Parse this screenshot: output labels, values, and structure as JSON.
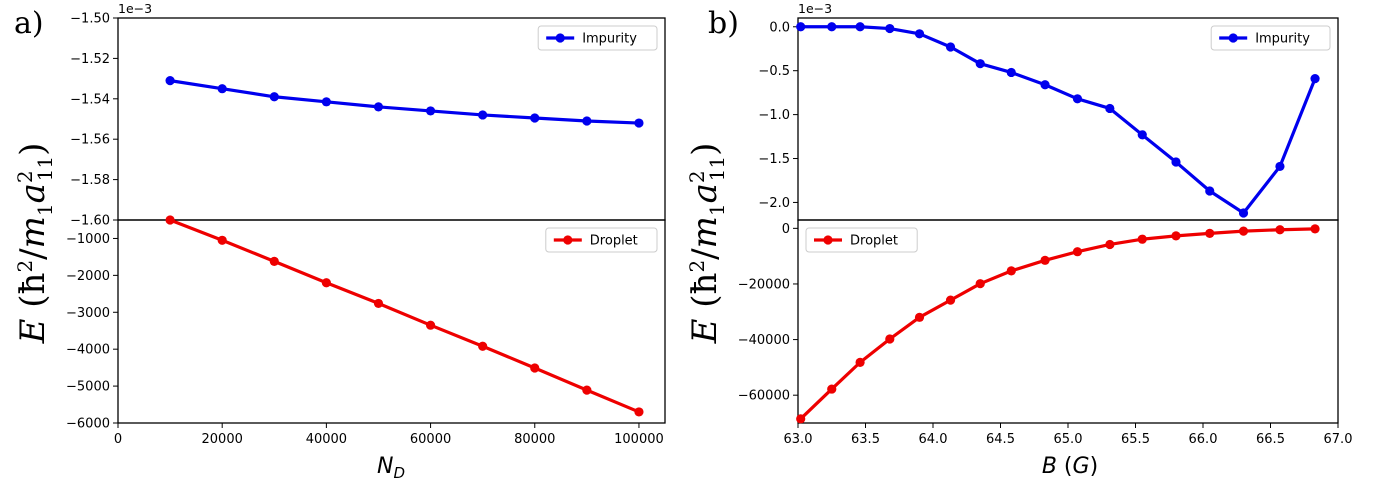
{
  "colors": {
    "impurity": "#0000ee",
    "droplet": "#ee0000",
    "axis": "#000000"
  },
  "chart_data": [
    {
      "id": "a",
      "panel_label": "a)",
      "type": "line",
      "xlabel": "N_D",
      "ylabel": "E (ħ²/m₁a₁₁²)",
      "x_ticks": [
        "0",
        "20000",
        "40000",
        "60000",
        "80000",
        "100000"
      ],
      "x_tick_values": [
        0,
        20000,
        40000,
        60000,
        80000,
        100000
      ],
      "xlim": [
        0,
        105000
      ],
      "top": {
        "offset_label": "1e−3",
        "ylim": [
          -1.6,
          -1.5
        ],
        "y_tick_values": [
          -1.6,
          -1.58,
          -1.56,
          -1.54,
          -1.52,
          -1.5
        ],
        "y_ticks": [
          "−1.60",
          "−1.58",
          "−1.56",
          "−1.54",
          "−1.52",
          "−1.50"
        ],
        "legend_position": "top-right",
        "series": [
          {
            "name": "Impurity",
            "color_key": "impurity",
            "x": [
              10000,
              20000,
              30000,
              40000,
              50000,
              60000,
              70000,
              80000,
              90000,
              100000
            ],
            "y": [
              -1.531,
              -1.535,
              -1.539,
              -1.5415,
              -1.544,
              -1.546,
              -1.548,
              -1.5495,
              -1.551,
              -1.552
            ]
          }
        ]
      },
      "bottom": {
        "ylim": [
          -6000,
          -500
        ],
        "y_tick_values": [
          -6000,
          -5000,
          -4000,
          -3000,
          -2000,
          -1000
        ],
        "y_ticks": [
          "−6000",
          "−5000",
          "−4000",
          "−3000",
          "−2000",
          "−1000"
        ],
        "legend_position": "top-right",
        "series": [
          {
            "name": "Droplet",
            "color_key": "droplet",
            "x": [
              10000,
              20000,
              30000,
              40000,
              50000,
              60000,
              70000,
              80000,
              90000,
              100000
            ],
            "y": [
              -500,
              -1050,
              -1620,
              -2200,
              -2760,
              -3350,
              -3920,
              -4510,
              -5110,
              -5700
            ]
          }
        ]
      }
    },
    {
      "id": "b",
      "panel_label": "b)",
      "type": "line",
      "xlabel": "B (G)",
      "ylabel": "E (ħ²/m₁a₁₁²)",
      "x_ticks": [
        "63.0",
        "63.5",
        "64.0",
        "64.5",
        "65.0",
        "65.5",
        "66.0",
        "66.5",
        "67.0"
      ],
      "x_tick_values": [
        63.0,
        63.5,
        64.0,
        64.5,
        65.0,
        65.5,
        66.0,
        66.5,
        67.0
      ],
      "xlim": [
        63.0,
        67.0
      ],
      "top": {
        "offset_label": "1e−3",
        "ylim": [
          -2.2,
          0.1
        ],
        "y_tick_values": [
          -2.0,
          -1.5,
          -1.0,
          -0.5,
          0.0
        ],
        "y_ticks": [
          "−2.0",
          "−1.5",
          "−1.0",
          "−0.5",
          "0.0"
        ],
        "legend_position": "top-right",
        "series": [
          {
            "name": "Impurity",
            "color_key": "impurity",
            "x": [
              63.02,
              63.25,
              63.46,
              63.68,
              63.9,
              64.13,
              64.35,
              64.58,
              64.83,
              65.07,
              65.31,
              65.55,
              65.8,
              66.05,
              66.3,
              66.57,
              66.83
            ],
            "y": [
              0.0,
              0.0,
              0.0,
              -0.02,
              -0.08,
              -0.23,
              -0.42,
              -0.52,
              -0.66,
              -0.82,
              -0.93,
              -1.23,
              -1.54,
              -1.87,
              -2.12,
              -1.59,
              -0.59
            ]
          }
        ]
      },
      "bottom": {
        "ylim": [
          -70000,
          3000
        ],
        "y_tick_values": [
          -60000,
          -40000,
          -20000,
          0
        ],
        "y_ticks": [
          "−60000",
          "−40000",
          "−20000",
          "0"
        ],
        "legend_position": "top-left",
        "series": [
          {
            "name": "Droplet",
            "color_key": "droplet",
            "x": [
              63.02,
              63.25,
              63.46,
              63.68,
              63.9,
              64.13,
              64.35,
              64.58,
              64.83,
              65.07,
              65.31,
              65.55,
              65.8,
              66.05,
              66.3,
              66.57,
              66.83
            ],
            "y": [
              -68500,
              -57800,
              -48200,
              -39800,
              -32000,
              -25800,
              -19900,
              -15300,
              -11500,
              -8400,
              -5800,
              -3900,
              -2700,
              -1800,
              -1000,
              -500,
              -200
            ]
          }
        ]
      }
    }
  ]
}
